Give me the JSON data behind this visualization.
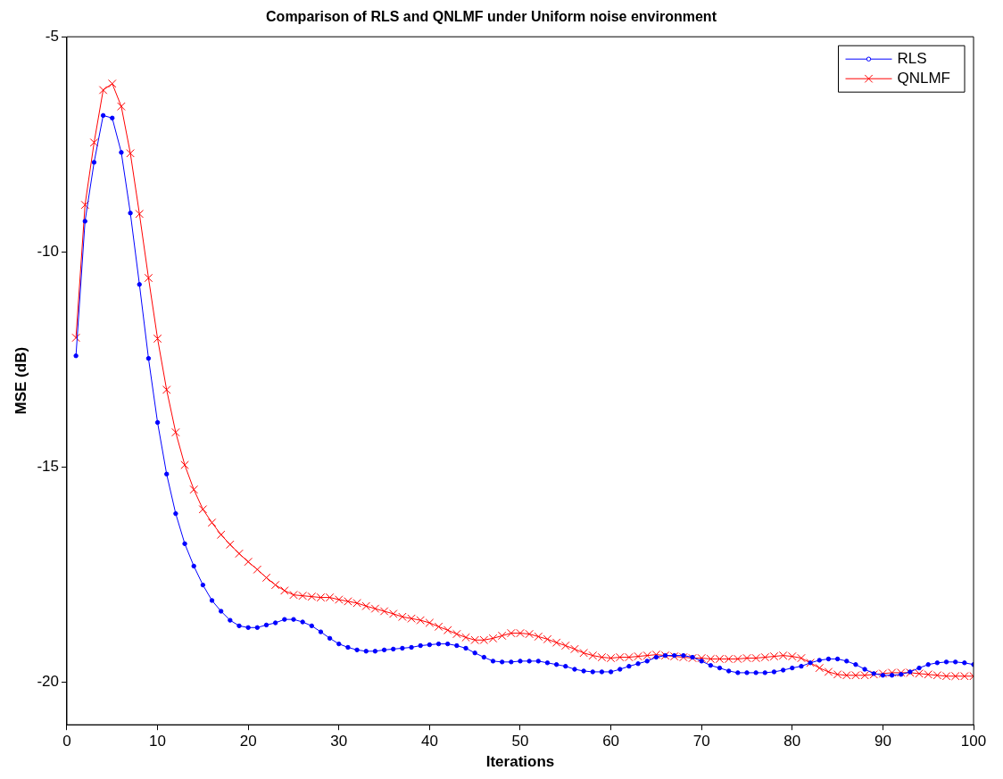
{
  "chart_data": {
    "type": "line",
    "title": "Comparison of RLS and QNLMF under Uniform noise environment",
    "xlabel": "Iterations",
    "ylabel": "MSE (dB)",
    "x": [
      1,
      2,
      3,
      4,
      5,
      6,
      7,
      8,
      9,
      10,
      11,
      12,
      13,
      14,
      15,
      16,
      17,
      18,
      19,
      20,
      21,
      22,
      23,
      24,
      25,
      26,
      27,
      28,
      29,
      30,
      31,
      32,
      33,
      34,
      35,
      36,
      37,
      38,
      39,
      40,
      41,
      42,
      43,
      44,
      45,
      46,
      47,
      48,
      49,
      50,
      51,
      52,
      53,
      54,
      55,
      56,
      57,
      58,
      59,
      60,
      61,
      62,
      63,
      64,
      65,
      66,
      67,
      68,
      69,
      70,
      71,
      72,
      73,
      74,
      75,
      76,
      77,
      78,
      79,
      80,
      81,
      82,
      83,
      84,
      85,
      86,
      87,
      88,
      89,
      90,
      91,
      92,
      93,
      94,
      95,
      96,
      97,
      98,
      99,
      100
    ],
    "series": [
      {
        "name": "RLS",
        "color": "#0000ff",
        "marker": "circle",
        "values": [
          -12.42,
          -9.29,
          -7.92,
          -6.83,
          -6.89,
          -7.69,
          -9.1,
          -10.76,
          -12.48,
          -13.97,
          -15.17,
          -16.09,
          -16.79,
          -17.31,
          -17.75,
          -18.11,
          -18.36,
          -18.57,
          -18.7,
          -18.74,
          -18.74,
          -18.68,
          -18.63,
          -18.55,
          -18.55,
          -18.61,
          -18.7,
          -18.84,
          -18.99,
          -19.12,
          -19.2,
          -19.26,
          -19.29,
          -19.29,
          -19.26,
          -19.24,
          -19.22,
          -19.2,
          -19.16,
          -19.14,
          -19.12,
          -19.12,
          -19.16,
          -19.22,
          -19.33,
          -19.43,
          -19.52,
          -19.54,
          -19.54,
          -19.52,
          -19.52,
          -19.52,
          -19.56,
          -19.6,
          -19.64,
          -19.71,
          -19.75,
          -19.77,
          -19.77,
          -19.77,
          -19.71,
          -19.64,
          -19.58,
          -19.52,
          -19.43,
          -19.39,
          -19.39,
          -19.39,
          -19.43,
          -19.52,
          -19.62,
          -19.68,
          -19.75,
          -19.79,
          -19.79,
          -19.79,
          -19.79,
          -19.77,
          -19.73,
          -19.68,
          -19.64,
          -19.56,
          -19.5,
          -19.47,
          -19.47,
          -19.52,
          -19.6,
          -19.71,
          -19.81,
          -19.85,
          -19.85,
          -19.83,
          -19.77,
          -19.68,
          -19.6,
          -19.56,
          -19.54,
          -19.54,
          -19.56,
          -19.6
        ]
      },
      {
        "name": "QNLMF",
        "color": "#ff0000",
        "marker": "cross",
        "values": [
          -12.0,
          -8.91,
          -7.46,
          -6.24,
          -6.09,
          -6.62,
          -7.71,
          -9.12,
          -10.61,
          -12.02,
          -13.21,
          -14.2,
          -14.96,
          -15.53,
          -15.99,
          -16.3,
          -16.58,
          -16.81,
          -17.02,
          -17.21,
          -17.39,
          -17.58,
          -17.75,
          -17.88,
          -17.98,
          -18.0,
          -18.02,
          -18.04,
          -18.04,
          -18.09,
          -18.13,
          -18.17,
          -18.24,
          -18.3,
          -18.36,
          -18.42,
          -18.49,
          -18.53,
          -18.57,
          -18.63,
          -18.72,
          -18.8,
          -18.89,
          -18.97,
          -19.03,
          -19.03,
          -18.99,
          -18.93,
          -18.87,
          -18.87,
          -18.89,
          -18.95,
          -19.01,
          -19.09,
          -19.16,
          -19.24,
          -19.33,
          -19.39,
          -19.43,
          -19.45,
          -19.43,
          -19.43,
          -19.41,
          -19.39,
          -19.37,
          -19.39,
          -19.41,
          -19.43,
          -19.45,
          -19.45,
          -19.47,
          -19.47,
          -19.47,
          -19.47,
          -19.45,
          -19.45,
          -19.43,
          -19.41,
          -19.39,
          -19.41,
          -19.45,
          -19.56,
          -19.68,
          -19.77,
          -19.83,
          -19.85,
          -19.85,
          -19.85,
          -19.83,
          -19.81,
          -19.79,
          -19.79,
          -19.79,
          -19.81,
          -19.83,
          -19.85,
          -19.87,
          -19.87,
          -19.87,
          -19.87
        ]
      }
    ],
    "xlim": [
      0,
      100
    ],
    "xticks": [
      0,
      10,
      20,
      30,
      40,
      50,
      60,
      70,
      80,
      90,
      100
    ],
    "ylim": [
      -21,
      -5
    ],
    "yticks": [
      -5,
      -10,
      -15,
      -20
    ],
    "grid": false,
    "legend": "top right"
  }
}
